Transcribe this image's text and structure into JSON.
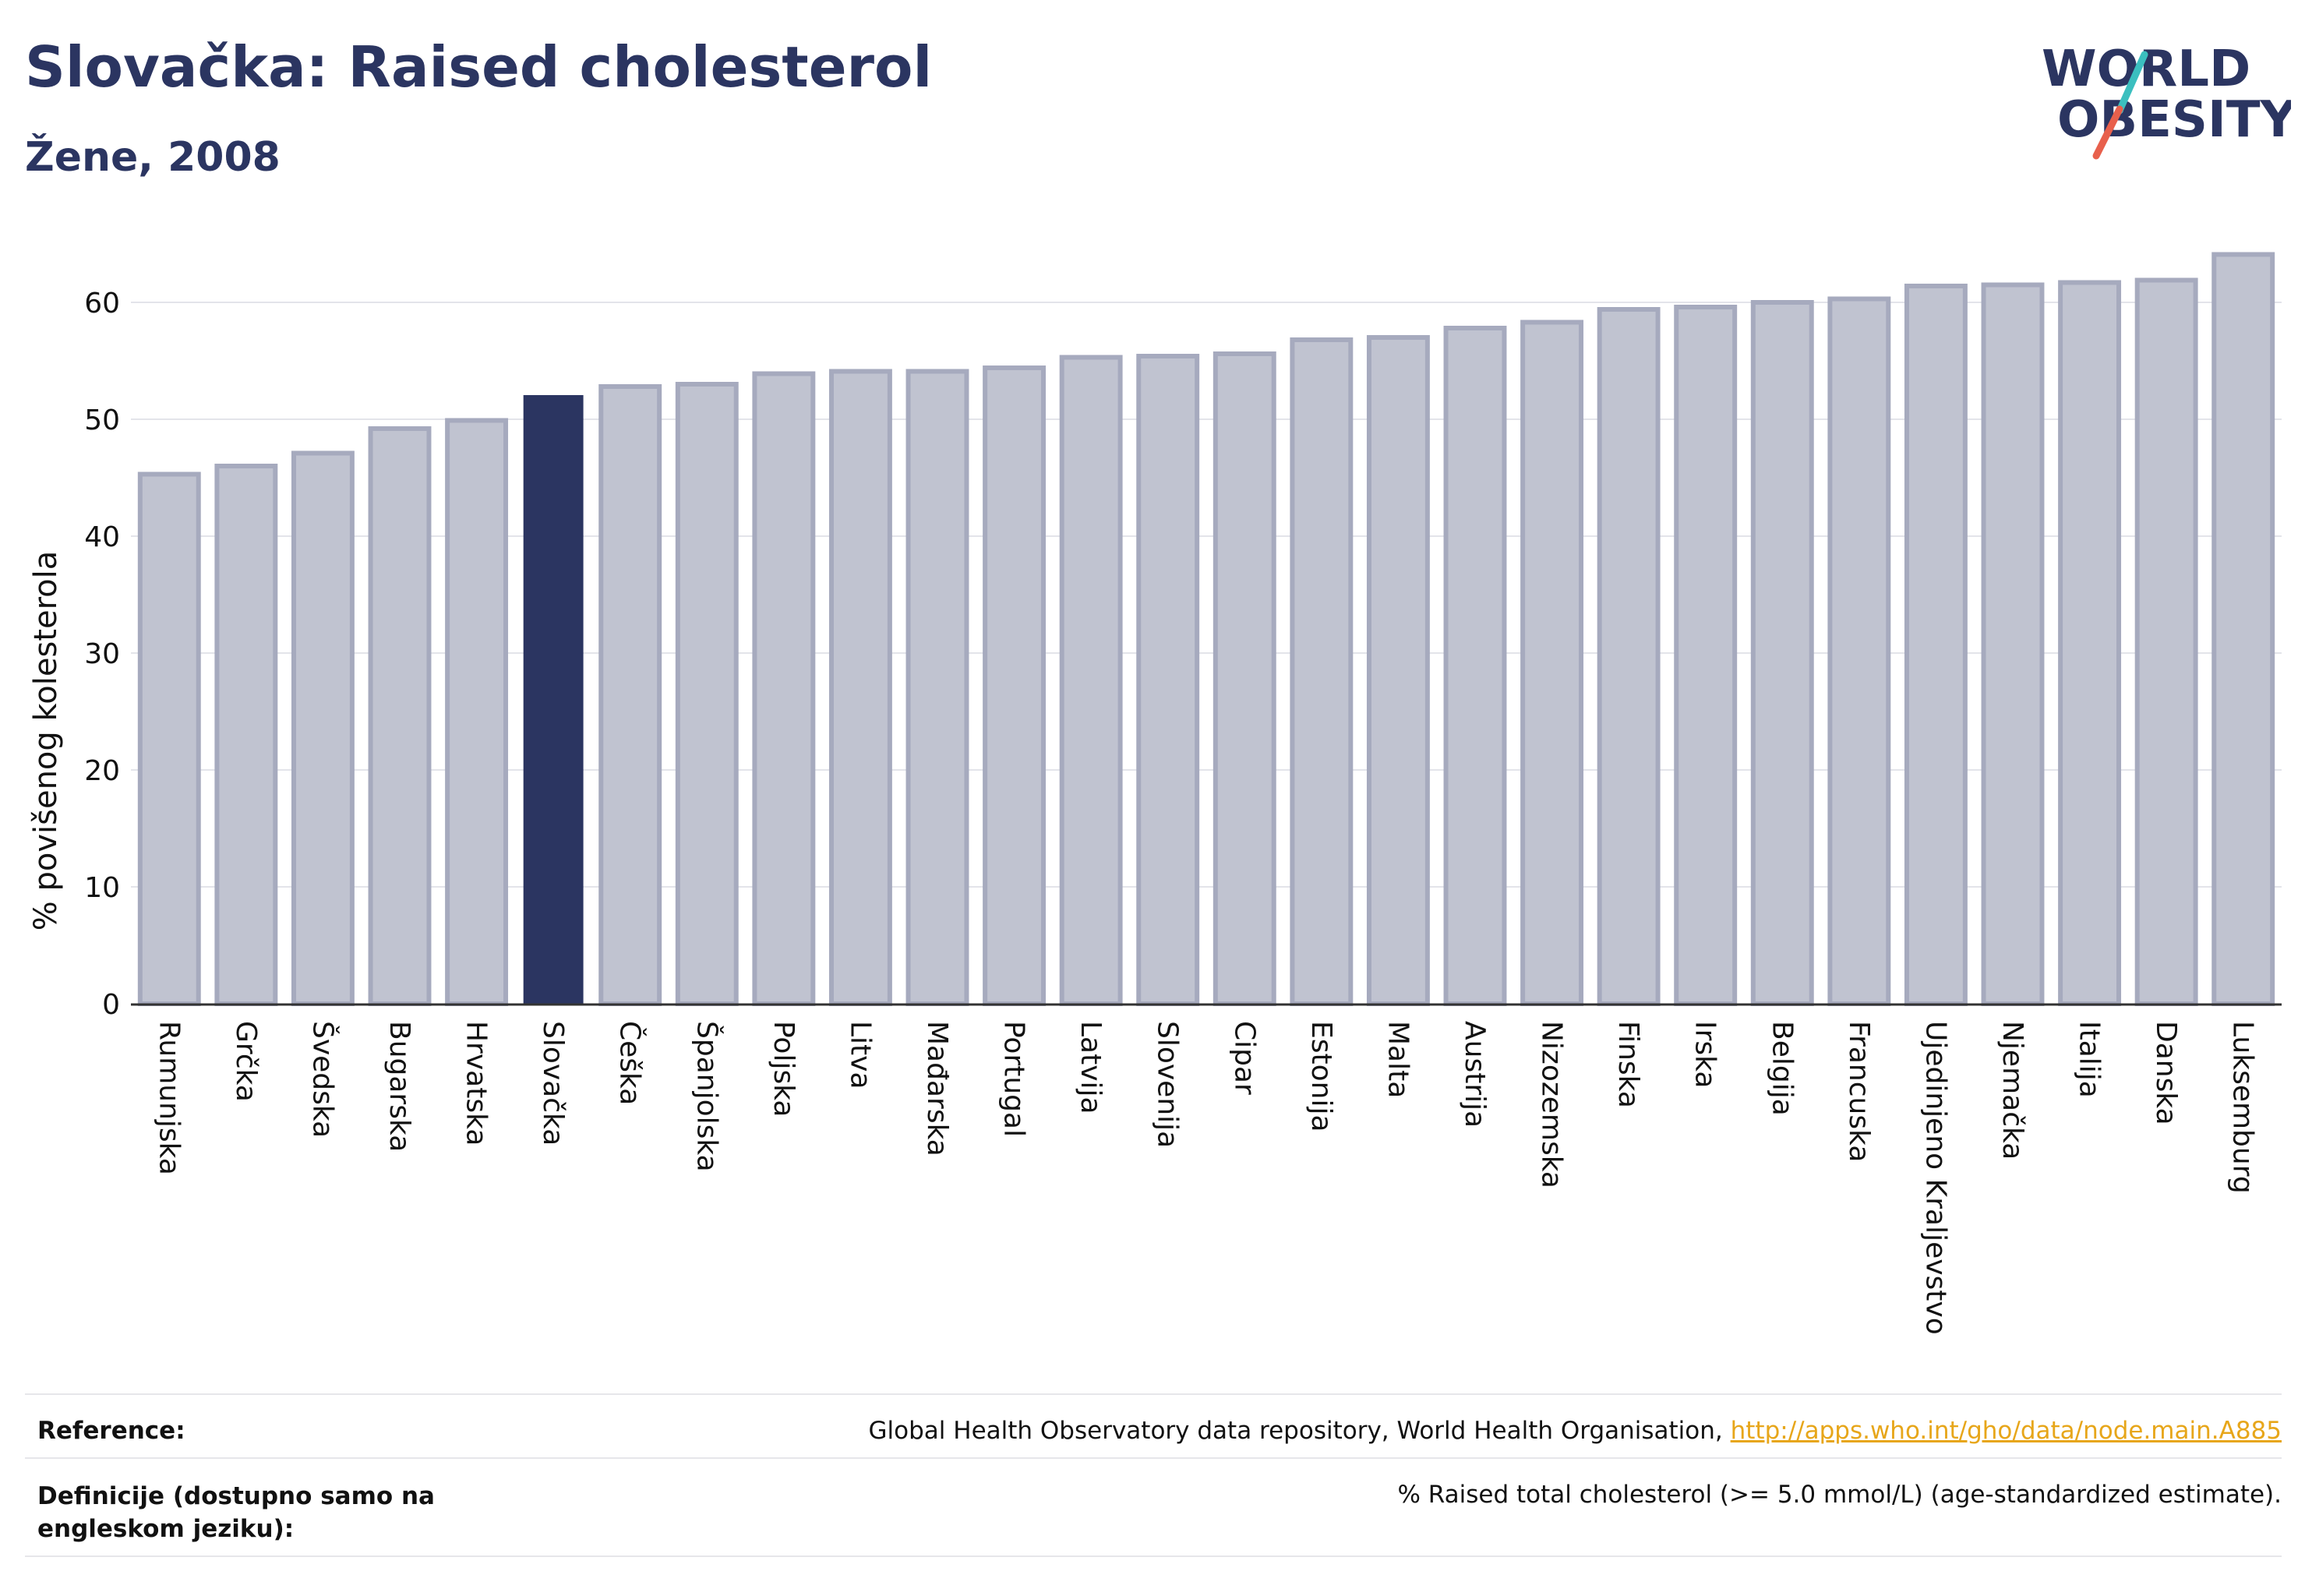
{
  "header": {
    "title": "Slovačka: Raised cholesterol",
    "subtitle": "Žene, 2008"
  },
  "logo": {
    "line1": "WORLD",
    "line2": "OBESITY",
    "accent_teal": "#3bbfbf",
    "accent_coral": "#e8604c",
    "color": "#2b3561"
  },
  "chart_data": {
    "type": "bar",
    "title": "Slovačka: Raised cholesterol",
    "subtitle": "Žene, 2008",
    "ylabel": "% povišenog kolesterola",
    "xlabel": "",
    "ylim": [
      0,
      65
    ],
    "yticks": [
      0,
      10,
      20,
      30,
      40,
      50,
      60
    ],
    "grid": true,
    "highlight": "Slovačka",
    "colors": {
      "bar": "#c0c3d0",
      "bar_edge": "#a6aabe",
      "highlight": "#2b3561"
    },
    "categories": [
      "Rumunjska",
      "Grčka",
      "Švedska",
      "Bugarska",
      "Hrvatska",
      "Slovačka",
      "Češka",
      "Španjolska",
      "Poljska",
      "Litva",
      "Mađarska",
      "Portugal",
      "Latvija",
      "Slovenija",
      "Cipar",
      "Estonija",
      "Malta",
      "Austrija",
      "Nizozemska",
      "Finska",
      "Irska",
      "Belgija",
      "Francuska",
      "Ujedinjeno Kraljevstvo",
      "Njemačka",
      "Italija",
      "Danska",
      "Luksemburg"
    ],
    "values": [
      45.3,
      46.0,
      47.1,
      49.2,
      49.9,
      52.0,
      52.8,
      53.0,
      53.9,
      54.1,
      54.1,
      54.4,
      55.3,
      55.4,
      55.6,
      56.8,
      57.0,
      57.8,
      58.3,
      59.4,
      59.6,
      60.0,
      60.3,
      61.4,
      61.5,
      61.7,
      61.9,
      64.1
    ]
  },
  "footer": {
    "reference_label": "Reference:",
    "reference_text": "Global Health Observatory data repository, World Health Organisation,",
    "reference_link": "http://apps.who.int/gho/data/node.main.A885",
    "definition_label": "Definicije (dostupno samo na engleskom jeziku):",
    "definition_text": "% Raised total cholesterol (>= 5.0 mmol/L) (age-standardized estimate)."
  }
}
